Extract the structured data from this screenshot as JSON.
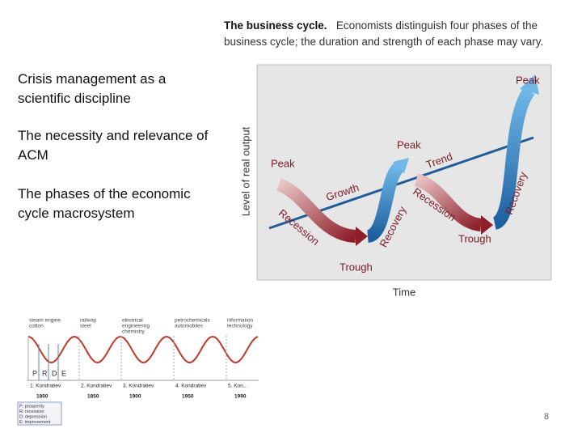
{
  "slide": {
    "bullets": [
      "Crisis management as a scientific discipline",
      "The necessity and relevance of ACM",
      "The phases of the economic cycle macrosystem"
    ],
    "page_number": 8
  },
  "business_cycle": {
    "caption_title": "The business cycle.",
    "caption_text": "Economists distinguish four phases of the business cycle; the duration and strength of each phase may vary.",
    "y_axis_label": "Level of real output",
    "x_axis_label": "Time",
    "peaks": [
      "Peak",
      "Peak",
      "Peak"
    ],
    "troughs": [
      "Trough",
      "Trough"
    ],
    "trend": "Trend",
    "phases": [
      "Recession",
      "Growth",
      "Recovery",
      "Recession",
      "Recovery"
    ]
  },
  "kondratiev": {
    "innovations": [
      [
        "steam engine",
        "cotton"
      ],
      [
        "railway",
        "steel"
      ],
      [
        "electrical",
        "engineering",
        "chemistry"
      ],
      [
        "petrochemicals",
        "automobiles"
      ],
      [
        "information",
        "technology"
      ]
    ],
    "phase_letters": [
      "P",
      "R",
      "D",
      "E"
    ],
    "waves": [
      "1. Kondratiev",
      "2. Kondratiev",
      "3. Kondratiev",
      "4. Kondratiev",
      "5. Kon..."
    ],
    "years": [
      1800,
      1850,
      1900,
      1950,
      1990
    ],
    "legend": [
      "P: prosperity",
      "R: recession",
      "D: depression",
      "E: improvement"
    ]
  }
}
